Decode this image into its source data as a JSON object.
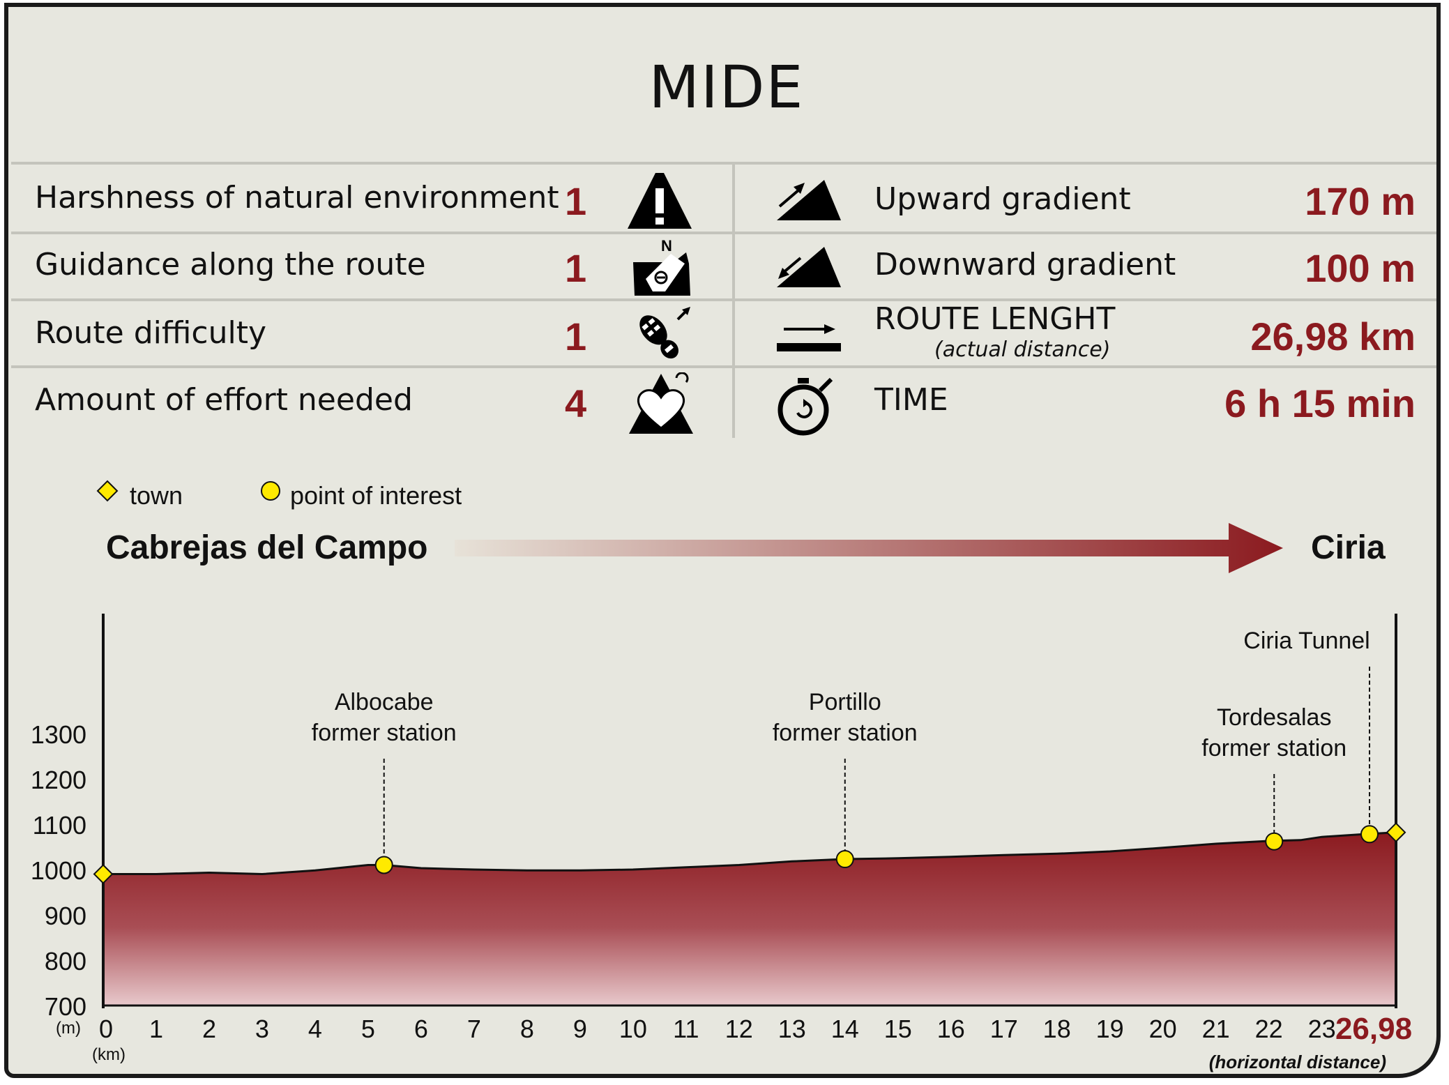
{
  "title": "MIDE",
  "mide": {
    "left_rows": [
      {
        "label": "Harshness of natural environment",
        "value": "1",
        "icon": "harshness-warning-icon"
      },
      {
        "label": "Guidance along the route",
        "value": "1",
        "icon": "guidance-compass-icon"
      },
      {
        "label": "Route difficulty",
        "value": "1",
        "icon": "boot-print-icon"
      },
      {
        "label": "Amount of effort needed",
        "value": "4",
        "icon": "heart-effort-icon"
      }
    ],
    "right_rows": [
      {
        "label": "Upward gradient",
        "value": "170 m",
        "icon": "upward-gradient-icon"
      },
      {
        "label": "Downward gradient",
        "value": "100 m",
        "icon": "downward-gradient-icon"
      },
      {
        "label": "ROUTE LENGHT",
        "sublabel": "(actual distance)",
        "value": "26,98 km",
        "icon": "route-length-arrow-icon"
      },
      {
        "label": "TIME",
        "value": "6 h 15 min",
        "icon": "stopwatch-icon"
      }
    ]
  },
  "legend": {
    "town_label": "town",
    "poi_label": "point of interest"
  },
  "route": {
    "start": "Cabrejas del Campo",
    "end": "Ciria"
  },
  "colors": {
    "accent": "#8b1a1f",
    "marker_yellow": "#ffea00",
    "background": "#e7e7df"
  },
  "chart_data": {
    "type": "area",
    "y_unit_label": "(m)",
    "x_unit_label": "(km)",
    "x_end_label": "26,98",
    "x_caption": "(horizontal distance)",
    "ylim": [
      700,
      1300
    ],
    "y_ticks": [
      700,
      800,
      900,
      1000,
      1100,
      1200,
      1300
    ],
    "xlim": [
      0,
      24.4
    ],
    "x_ticks": [
      0,
      1,
      2,
      3,
      4,
      5,
      6,
      7,
      8,
      9,
      10,
      11,
      12,
      13,
      14,
      15,
      16,
      17,
      18,
      19,
      20,
      21,
      22,
      23
    ],
    "profile": {
      "x": [
        0,
        1,
        2,
        3,
        4,
        5,
        5.3,
        6,
        7,
        8,
        9,
        10,
        11,
        12,
        13,
        14,
        15,
        16,
        17,
        18,
        19,
        20,
        21,
        22,
        22.6,
        23,
        23.8,
        24.4
      ],
      "y": [
        990,
        990,
        993,
        990,
        998,
        1010,
        1010,
        1003,
        1000,
        998,
        998,
        1000,
        1005,
        1010,
        1018,
        1023,
        1025,
        1028,
        1032,
        1035,
        1040,
        1048,
        1057,
        1063,
        1065,
        1072,
        1078,
        1082
      ]
    },
    "markers": [
      {
        "type": "town",
        "x": 0,
        "y": 990
      },
      {
        "type": "poi",
        "x": 5.3,
        "y": 1010,
        "label_lines": [
          "Albocabe",
          "former station"
        ]
      },
      {
        "type": "poi",
        "x": 14,
        "y": 1023,
        "label_lines": [
          "Portillo",
          "former station"
        ]
      },
      {
        "type": "poi",
        "x": 22.1,
        "y": 1062,
        "label_lines": [
          "Tordesalas",
          "former station"
        ]
      },
      {
        "type": "poi",
        "x": 23.9,
        "y": 1078,
        "label_lines": [
          "Ciria Tunnel"
        ]
      },
      {
        "type": "town",
        "x": 24.4,
        "y": 1082
      }
    ]
  }
}
